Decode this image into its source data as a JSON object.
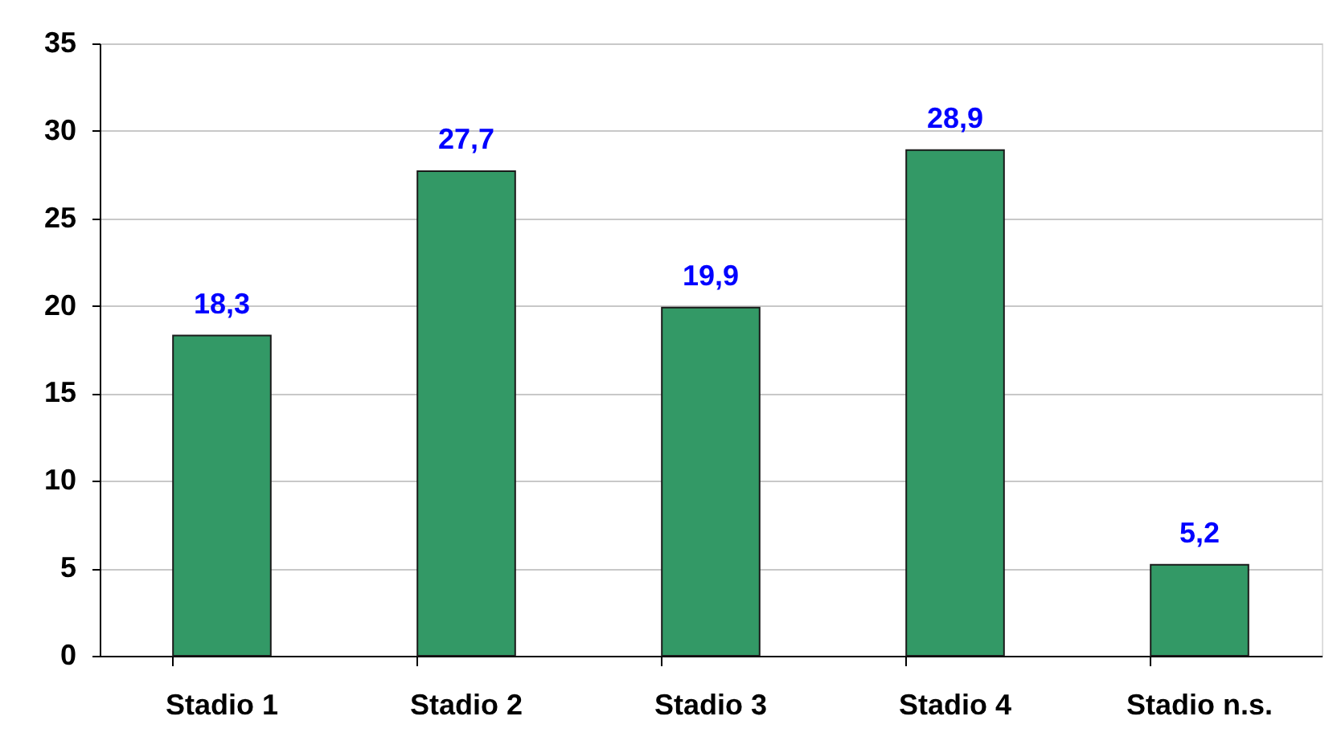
{
  "chart_data": {
    "type": "bar",
    "categories": [
      "Stadio 1",
      "Stadio 2",
      "Stadio 3",
      "Stadio 4",
      "Stadio n.s."
    ],
    "values": [
      18.3,
      27.7,
      19.9,
      28.9,
      5.2
    ],
    "value_labels": [
      "18,3",
      "27,7",
      "19,9",
      "28,9",
      "5,2"
    ],
    "color": "#339966",
    "ylim": [
      0,
      35
    ],
    "yticks": [
      0,
      5,
      10,
      15,
      20,
      25,
      30,
      35
    ],
    "grid": "y"
  }
}
